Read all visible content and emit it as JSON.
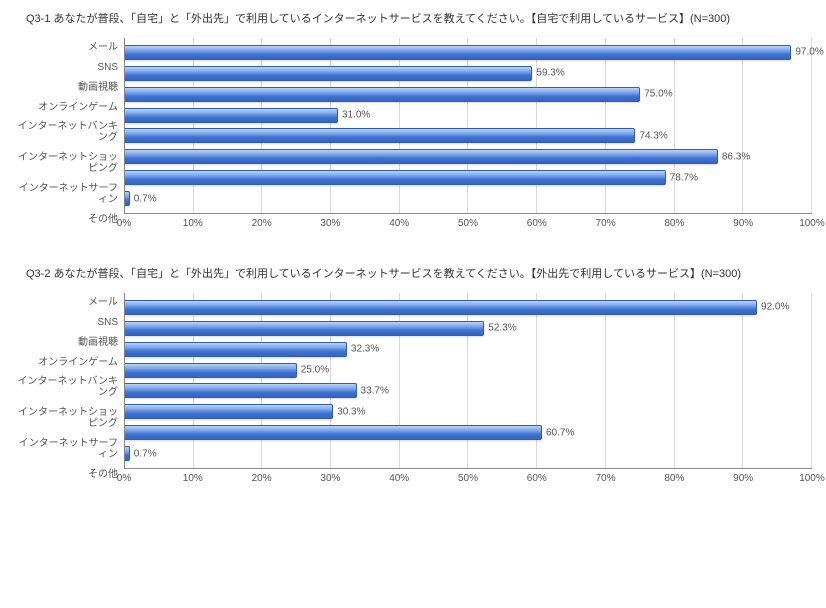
{
  "charts": [
    {
      "title": "Q3-1 あなたが普段、「自宅」と「外出先」で利用しているインターネットサービスを教えてください。【自宅で利用しているサービス】(N=300)",
      "xlim": [
        0,
        100
      ],
      "xtick_step": 10,
      "xtick_suffix": "%",
      "bar_color_top": "#bcd3f5",
      "bar_color_bottom": "#3463c4",
      "bar_border": "#2f5db8",
      "grid_color": "#d9d9d9",
      "axis_color": "#888888",
      "label_color": "#555555",
      "background": "#ffffff",
      "categories": [
        {
          "label": "メール",
          "value": 97.0
        },
        {
          "label": "SNS",
          "value": 59.3
        },
        {
          "label": "動画視聴",
          "value": 75.0
        },
        {
          "label": "オンラインゲーム",
          "value": 31.0
        },
        {
          "label": "インターネットバンキング",
          "value": 74.3
        },
        {
          "label": "インターネットショッピング",
          "value": 86.3
        },
        {
          "label": "インターネットサーフィン",
          "value": 78.7
        },
        {
          "label": "その他",
          "value": 0.7
        }
      ]
    },
    {
      "title": "Q3-2 あなたが普段、「自宅」と「外出先」で利用しているインターネットサービスを教えてください。【外出先で利用しているサービス】(N=300)",
      "xlim": [
        0,
        100
      ],
      "xtick_step": 10,
      "xtick_suffix": "%",
      "bar_color_top": "#bcd3f5",
      "bar_color_bottom": "#3463c4",
      "bar_border": "#2f5db8",
      "grid_color": "#d9d9d9",
      "axis_color": "#888888",
      "label_color": "#555555",
      "background": "#ffffff",
      "categories": [
        {
          "label": "メール",
          "value": 92.0
        },
        {
          "label": "SNS",
          "value": 52.3
        },
        {
          "label": "動画視聴",
          "value": 32.3
        },
        {
          "label": "オンラインゲーム",
          "value": 25.0
        },
        {
          "label": "インターネットバンキング",
          "value": 33.7
        },
        {
          "label": "インターネットショッピング",
          "value": 30.3
        },
        {
          "label": "インターネットサーフィン",
          "value": 60.7
        },
        {
          "label": "その他",
          "value": 0.7
        }
      ]
    }
  ]
}
